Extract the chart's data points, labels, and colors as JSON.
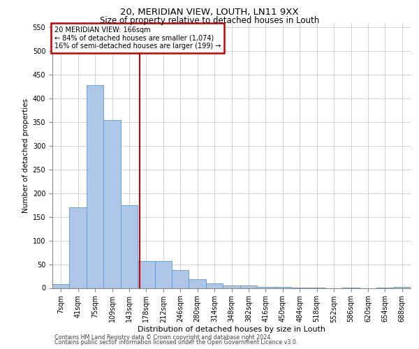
{
  "title1": "20, MERIDIAN VIEW, LOUTH, LN11 9XX",
  "title2": "Size of property relative to detached houses in Louth",
  "xlabel": "Distribution of detached houses by size in Louth",
  "ylabel": "Number of detached properties",
  "categories": [
    "7sqm",
    "41sqm",
    "75sqm",
    "109sqm",
    "143sqm",
    "178sqm",
    "212sqm",
    "246sqm",
    "280sqm",
    "314sqm",
    "348sqm",
    "382sqm",
    "416sqm",
    "450sqm",
    "484sqm",
    "518sqm",
    "552sqm",
    "586sqm",
    "620sqm",
    "654sqm",
    "688sqm"
  ],
  "values": [
    8,
    170,
    428,
    355,
    175,
    57,
    57,
    38,
    18,
    10,
    5,
    5,
    2,
    2,
    1,
    1,
    0,
    1,
    0,
    1,
    2
  ],
  "bar_color": "#aec6e8",
  "bar_edge_color": "#5b9bd5",
  "red_line_x": 4.62,
  "annotation_title": "20 MERIDIAN VIEW: 166sqm",
  "annotation_line1": "← 84% of detached houses are smaller (1,074)",
  "annotation_line2": "16% of semi-detached houses are larger (199) →",
  "annotation_box_color": "#ffffff",
  "annotation_box_edge": "#cc0000",
  "red_line_color": "#cc0000",
  "ylim": [
    0,
    560
  ],
  "yticks": [
    0,
    50,
    100,
    150,
    200,
    250,
    300,
    350,
    400,
    450,
    500,
    550
  ],
  "footer1": "Contains HM Land Registry data © Crown copyright and database right 2024.",
  "footer2": "Contains public sector information licensed under the Open Government Licence v3.0.",
  "background_color": "#ffffff",
  "grid_color": "#cccccc",
  "title1_fontsize": 9.5,
  "title2_fontsize": 8.5,
  "ylabel_fontsize": 7.5,
  "xlabel_fontsize": 8.0,
  "tick_fontsize": 7.0,
  "ann_fontsize": 7.0,
  "footer_fontsize": 5.8
}
